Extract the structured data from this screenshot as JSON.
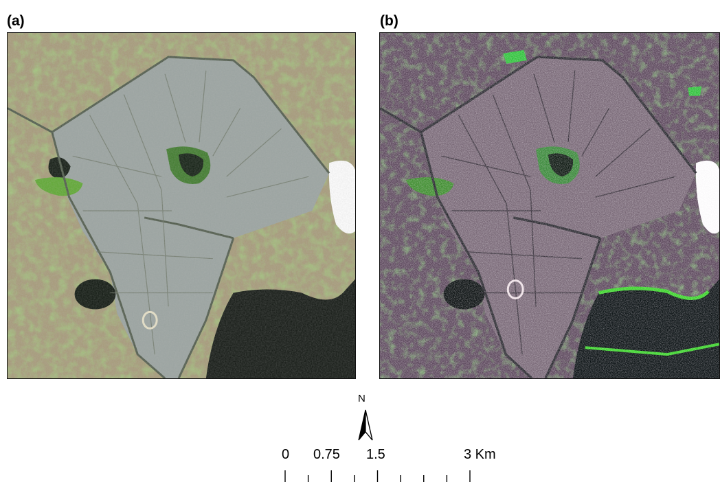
{
  "panels": [
    {
      "label": "(a)"
    },
    {
      "label": "(b)"
    }
  ],
  "north_arrow": {
    "label": "N"
  },
  "scale_bar": {
    "tick_labels": [
      "0",
      "0.75",
      "1.5",
      "3 Km"
    ],
    "tick_values": [
      0,
      0.75,
      1.5,
      3
    ],
    "unit": "Km",
    "minor_divisions": 8
  }
}
